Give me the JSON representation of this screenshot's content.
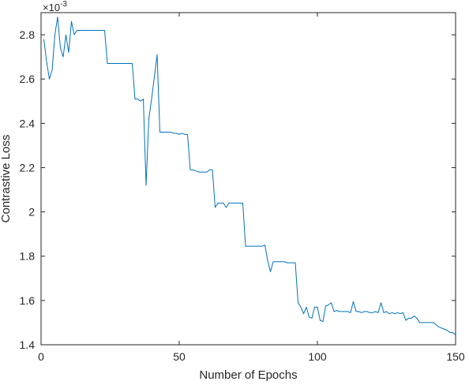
{
  "chart_data": {
    "type": "line",
    "xlabel": "Number of Epochs",
    "ylabel": "Contrastive Loss",
    "exponent_base": "×10",
    "exponent_power": "-3",
    "xlim": [
      0,
      150
    ],
    "ylim": [
      1.4,
      2.9
    ],
    "xticks": [
      0,
      50,
      100,
      150
    ],
    "xtick_labels": [
      "0",
      "50",
      "100",
      "150"
    ],
    "yticks": [
      1.4,
      1.6,
      1.8,
      2.0,
      2.2,
      2.4,
      2.6,
      2.8
    ],
    "ytick_labels": [
      "1.4",
      "1.6",
      "1.8",
      "2",
      "2.2",
      "2.4",
      "2.6",
      "2.8"
    ],
    "grid": false,
    "box": true,
    "series": [
      {
        "color": "#0072BD",
        "x": [
          1,
          2,
          3,
          4,
          5,
          6,
          7,
          8,
          9,
          10,
          11,
          12,
          13,
          14,
          15,
          16,
          17,
          18,
          19,
          20,
          21,
          22,
          23,
          24,
          25,
          26,
          27,
          28,
          29,
          30,
          31,
          32,
          33,
          34,
          35,
          36,
          37,
          38,
          39,
          40,
          41,
          42,
          43,
          44,
          45,
          46,
          47,
          48,
          49,
          50,
          51,
          52,
          53,
          54,
          55,
          56,
          57,
          58,
          59,
          60,
          61,
          62,
          63,
          64,
          65,
          66,
          67,
          68,
          69,
          70,
          71,
          72,
          73,
          74,
          75,
          76,
          77,
          78,
          79,
          80,
          81,
          82,
          83,
          84,
          85,
          86,
          87,
          88,
          89,
          90,
          91,
          92,
          93,
          94,
          95,
          96,
          97,
          98,
          99,
          100,
          101,
          102,
          103,
          104,
          105,
          106,
          107,
          108,
          109,
          110,
          111,
          112,
          113,
          114,
          115,
          116,
          117,
          118,
          119,
          120,
          121,
          122,
          123,
          124,
          125,
          126,
          127,
          128,
          129,
          130,
          131,
          132,
          133,
          134,
          135,
          136,
          137,
          138,
          139,
          140,
          141,
          142,
          143,
          144,
          145,
          146,
          147,
          148,
          149,
          150
        ],
        "y": [
          2.78,
          2.68,
          2.6,
          2.64,
          2.8,
          2.88,
          2.74,
          2.7,
          2.8,
          2.72,
          2.86,
          2.8,
          2.82,
          2.82,
          2.82,
          2.82,
          2.82,
          2.82,
          2.82,
          2.82,
          2.82,
          2.82,
          2.82,
          2.67,
          2.67,
          2.67,
          2.67,
          2.67,
          2.67,
          2.67,
          2.67,
          2.67,
          2.67,
          2.51,
          2.51,
          2.5,
          2.51,
          2.12,
          2.42,
          2.51,
          2.61,
          2.71,
          2.36,
          2.36,
          2.36,
          2.36,
          2.36,
          2.355,
          2.355,
          2.35,
          2.355,
          2.35,
          2.35,
          2.19,
          2.19,
          2.185,
          2.18,
          2.18,
          2.18,
          2.18,
          2.19,
          2.19,
          2.02,
          2.04,
          2.04,
          2.04,
          2.02,
          2.04,
          2.04,
          2.04,
          2.04,
          2.04,
          2.04,
          1.845,
          1.845,
          1.845,
          1.845,
          1.845,
          1.845,
          1.845,
          1.85,
          1.78,
          1.73,
          1.775,
          1.775,
          1.775,
          1.775,
          1.775,
          1.77,
          1.77,
          1.77,
          1.77,
          1.59,
          1.57,
          1.54,
          1.57,
          1.525,
          1.52,
          1.57,
          1.57,
          1.51,
          1.505,
          1.575,
          1.58,
          1.59,
          1.55,
          1.555,
          1.55,
          1.55,
          1.55,
          1.55,
          1.545,
          1.595,
          1.55,
          1.55,
          1.545,
          1.55,
          1.55,
          1.545,
          1.545,
          1.55,
          1.545,
          1.59,
          1.545,
          1.55,
          1.54,
          1.545,
          1.54,
          1.545,
          1.54,
          1.545,
          1.51,
          1.52,
          1.52,
          1.53,
          1.52,
          1.5,
          1.5,
          1.5,
          1.5,
          1.5,
          1.5,
          1.49,
          1.48,
          1.475,
          1.47,
          1.465,
          1.455,
          1.455,
          1.445
        ]
      }
    ]
  }
}
